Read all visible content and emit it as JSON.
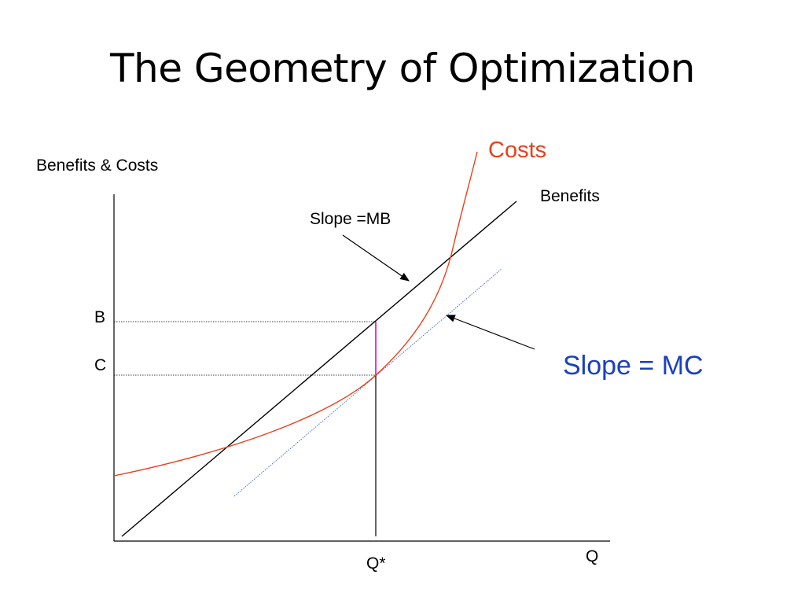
{
  "title": "The Geometry of Optimization",
  "diagram": {
    "y_axis_label": "Benefits & Costs",
    "x_axis_label": "Q",
    "benefits_label": "Benefits",
    "costs_label": "Costs",
    "slope_mb_label": "Slope =MB",
    "slope_mc_label": "Slope = MC",
    "b_label": "B",
    "c_label": "C",
    "qstar_label": "Q*"
  },
  "colors": {
    "axis": "#000000",
    "benefits": "#000000",
    "costs": "#e8401c",
    "tangent": "#3a5fcd",
    "gap": "#e020e0",
    "slope_mc_text": "#1a3fbf"
  }
}
